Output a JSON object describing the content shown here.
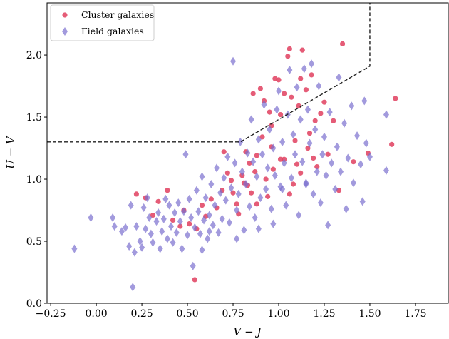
{
  "chart_data": {
    "type": "scatter",
    "xlabel": "V − J",
    "ylabel": "U − V",
    "xlim": [
      -0.27,
      1.93
    ],
    "ylim": [
      0.0,
      2.42
    ],
    "xticks": [
      -0.25,
      0.0,
      0.25,
      0.5,
      0.75,
      1.0,
      1.25,
      1.5,
      1.75
    ],
    "xtick_labels": [
      "−0.25",
      "0.00",
      "0.25",
      "0.50",
      "0.75",
      "1.00",
      "1.25",
      "1.50",
      "1.75"
    ],
    "yticks": [
      0.0,
      0.5,
      1.0,
      1.5,
      2.0
    ],
    "ytick_labels": [
      "0.0",
      "0.5",
      "1.0",
      "1.5",
      "2.0"
    ],
    "grid": false,
    "legend_position": "top-left",
    "boundary": {
      "style": "dashed",
      "color": "#222222",
      "points": [
        [
          -0.27,
          1.3
        ],
        [
          0.79,
          1.3
        ],
        [
          1.5,
          1.91
        ],
        [
          1.5,
          2.42
        ]
      ]
    },
    "series": [
      {
        "name": "Cluster galaxies",
        "marker": "circle",
        "color": "#e0405f",
        "points": [
          [
            0.22,
            0.88
          ],
          [
            0.27,
            0.85
          ],
          [
            0.31,
            0.71
          ],
          [
            0.34,
            0.82
          ],
          [
            0.39,
            0.91
          ],
          [
            0.42,
            0.67
          ],
          [
            0.46,
            0.62
          ],
          [
            0.48,
            0.75
          ],
          [
            0.51,
            0.64
          ],
          [
            0.55,
            0.6
          ],
          [
            0.58,
            0.79
          ],
          [
            0.6,
            0.7
          ],
          [
            0.63,
            0.84
          ],
          [
            0.66,
            0.77
          ],
          [
            0.69,
            0.91
          ],
          [
            0.7,
            1.22
          ],
          [
            0.72,
            1.05
          ],
          [
            0.74,
            0.99
          ],
          [
            0.75,
            0.89
          ],
          [
            0.77,
            0.8
          ],
          [
            0.78,
            0.72
          ],
          [
            0.8,
            1.03
          ],
          [
            0.82,
            1.22
          ],
          [
            0.83,
            0.95
          ],
          [
            0.84,
            1.13
          ],
          [
            0.85,
            0.89
          ],
          [
            0.86,
            1.69
          ],
          [
            0.87,
            1.06
          ],
          [
            0.88,
            1.19
          ],
          [
            0.9,
            1.73
          ],
          [
            0.91,
            1.34
          ],
          [
            0.92,
            1.63
          ],
          [
            0.93,
            1.0
          ],
          [
            0.94,
            0.86
          ],
          [
            0.95,
            1.54
          ],
          [
            0.96,
            1.26
          ],
          [
            0.97,
            1.08
          ],
          [
            0.98,
            1.81
          ],
          [
            1.0,
            1.8
          ],
          [
            1.01,
            1.52
          ],
          [
            1.03,
            1.69
          ],
          [
            1.05,
            1.99
          ],
          [
            1.06,
            2.05
          ],
          [
            1.07,
            1.66
          ],
          [
            1.08,
            0.96
          ],
          [
            1.09,
            1.31
          ],
          [
            1.1,
            1.12
          ],
          [
            1.11,
            1.59
          ],
          [
            1.12,
            1.81
          ],
          [
            1.13,
            2.04
          ],
          [
            1.15,
            1.72
          ],
          [
            1.16,
            1.25
          ],
          [
            1.18,
            1.84
          ],
          [
            1.19,
            1.17
          ],
          [
            1.2,
            1.47
          ],
          [
            1.21,
            1.1
          ],
          [
            1.23,
            1.53
          ],
          [
            1.25,
            1.62
          ],
          [
            1.27,
            1.2
          ],
          [
            1.3,
            1.47
          ],
          [
            1.33,
            0.91
          ],
          [
            1.35,
            2.09
          ],
          [
            1.41,
            1.14
          ],
          [
            1.49,
            1.21
          ],
          [
            1.62,
            1.28
          ],
          [
            1.64,
            1.65
          ],
          [
            0.54,
            0.19
          ],
          [
            1.03,
            1.16
          ],
          [
            0.96,
            1.43
          ],
          [
            0.88,
            0.8
          ],
          [
            1.12,
            1.05
          ],
          [
            1.06,
            0.88
          ],
          [
            0.81,
            0.97
          ],
          [
            1.17,
            1.37
          ],
          [
            1.01,
            1.16
          ]
        ]
      },
      {
        "name": "Field galaxies",
        "marker": "diamond",
        "color": "#7b6fce",
        "points": [
          [
            -0.12,
            0.44
          ],
          [
            -0.03,
            0.69
          ],
          [
            0.09,
            0.69
          ],
          [
            0.1,
            0.62
          ],
          [
            0.14,
            0.58
          ],
          [
            0.18,
            0.46
          ],
          [
            0.19,
            0.79
          ],
          [
            0.2,
            0.13
          ],
          [
            0.21,
            0.41
          ],
          [
            0.22,
            0.62
          ],
          [
            0.24,
            0.5
          ],
          [
            0.25,
            0.45
          ],
          [
            0.26,
            0.77
          ],
          [
            0.27,
            0.6
          ],
          [
            0.28,
            0.85
          ],
          [
            0.29,
            0.69
          ],
          [
            0.3,
            0.56
          ],
          [
            0.31,
            0.49
          ],
          [
            0.33,
            0.66
          ],
          [
            0.34,
            0.73
          ],
          [
            0.35,
            0.44
          ],
          [
            0.36,
            0.58
          ],
          [
            0.37,
            0.68
          ],
          [
            0.38,
            0.84
          ],
          [
            0.39,
            0.52
          ],
          [
            0.4,
            0.79
          ],
          [
            0.41,
            0.62
          ],
          [
            0.42,
            0.49
          ],
          [
            0.43,
            0.73
          ],
          [
            0.44,
            0.57
          ],
          [
            0.45,
            0.81
          ],
          [
            0.46,
            0.66
          ],
          [
            0.47,
            0.44
          ],
          [
            0.48,
            0.74
          ],
          [
            0.49,
            1.2
          ],
          [
            0.5,
            0.55
          ],
          [
            0.51,
            0.84
          ],
          [
            0.52,
            0.69
          ],
          [
            0.53,
            0.3
          ],
          [
            0.54,
            0.61
          ],
          [
            0.55,
            0.91
          ],
          [
            0.56,
            0.74
          ],
          [
            0.57,
            0.56
          ],
          [
            0.58,
            1.02
          ],
          [
            0.59,
            0.67
          ],
          [
            0.6,
            0.85
          ],
          [
            0.61,
            0.52
          ],
          [
            0.62,
            0.71
          ],
          [
            0.63,
            0.96
          ],
          [
            0.64,
            0.63
          ],
          [
            0.65,
            0.79
          ],
          [
            0.66,
            1.09
          ],
          [
            0.67,
            0.57
          ],
          [
            0.68,
            0.89
          ],
          [
            0.69,
            0.68
          ],
          [
            0.7,
            1.01
          ],
          [
            0.71,
            0.83
          ],
          [
            0.72,
            1.18
          ],
          [
            0.73,
            0.65
          ],
          [
            0.74,
            0.93
          ],
          [
            0.75,
            1.95
          ],
          [
            0.76,
            1.13
          ],
          [
            0.77,
            0.75
          ],
          [
            0.78,
            0.88
          ],
          [
            0.79,
            1.3
          ],
          [
            0.8,
            1.06
          ],
          [
            0.81,
            0.59
          ],
          [
            0.82,
            0.96
          ],
          [
            0.83,
            1.21
          ],
          [
            0.84,
            0.78
          ],
          [
            0.85,
            1.48
          ],
          [
            0.86,
            1.14
          ],
          [
            0.87,
            0.69
          ],
          [
            0.88,
            1.02
          ],
          [
            0.89,
            1.32
          ],
          [
            0.9,
            0.85
          ],
          [
            0.91,
            1.2
          ],
          [
            0.92,
            1.6
          ],
          [
            0.93,
            0.92
          ],
          [
            0.94,
            1.09
          ],
          [
            0.95,
            1.4
          ],
          [
            0.96,
            0.76
          ],
          [
            0.97,
            1.25
          ],
          [
            0.98,
            1.03
          ],
          [
            0.99,
            1.56
          ],
          [
            1.0,
            1.71
          ],
          [
            1.01,
            0.94
          ],
          [
            1.02,
            1.3
          ],
          [
            1.03,
            1.13
          ],
          [
            1.04,
            0.79
          ],
          [
            1.05,
            1.52
          ],
          [
            1.06,
            1.88
          ],
          [
            1.07,
            1.01
          ],
          [
            1.08,
            1.36
          ],
          [
            1.09,
            1.2
          ],
          [
            1.1,
            1.74
          ],
          [
            1.11,
            0.71
          ],
          [
            1.12,
            1.48
          ],
          [
            1.13,
            1.14
          ],
          [
            1.14,
            1.89
          ],
          [
            1.15,
            0.96
          ],
          [
            1.16,
            1.56
          ],
          [
            1.17,
            1.29
          ],
          [
            1.18,
            1.93
          ],
          [
            1.19,
            0.88
          ],
          [
            1.2,
            1.4
          ],
          [
            1.21,
            1.06
          ],
          [
            1.22,
            1.75
          ],
          [
            1.23,
            0.81
          ],
          [
            1.24,
            1.2
          ],
          [
            1.25,
            1.34
          ],
          [
            1.26,
            1.03
          ],
          [
            1.27,
            0.63
          ],
          [
            1.28,
            1.54
          ],
          [
            1.29,
            1.13
          ],
          [
            1.31,
            0.92
          ],
          [
            1.32,
            1.26
          ],
          [
            1.33,
            1.82
          ],
          [
            1.34,
            1.06
          ],
          [
            1.36,
            1.45
          ],
          [
            1.37,
            0.76
          ],
          [
            1.38,
            1.17
          ],
          [
            1.4,
            1.59
          ],
          [
            1.41,
            0.97
          ],
          [
            1.43,
            1.35
          ],
          [
            1.45,
            1.12
          ],
          [
            1.46,
            0.82
          ],
          [
            1.47,
            1.63
          ],
          [
            1.48,
            1.29
          ],
          [
            1.5,
            1.18
          ],
          [
            1.59,
            1.07
          ],
          [
            1.59,
            1.52
          ],
          [
            0.16,
            0.61
          ],
          [
            0.62,
            0.58
          ],
          [
            0.77,
            0.52
          ],
          [
            1.02,
            0.92
          ],
          [
            0.89,
            0.6
          ],
          [
            0.58,
            0.43
          ],
          [
            1.15,
            0.97
          ],
          [
            0.97,
            0.64
          ]
        ]
      }
    ]
  }
}
